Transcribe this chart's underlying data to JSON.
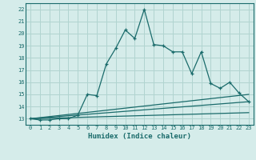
{
  "title": "",
  "xlabel": "Humidex (Indice chaleur)",
  "xlim": [
    -0.5,
    23.5
  ],
  "ylim": [
    12.5,
    22.5
  ],
  "yticks": [
    13,
    14,
    15,
    16,
    17,
    18,
    19,
    20,
    21,
    22
  ],
  "xticks": [
    0,
    1,
    2,
    3,
    4,
    5,
    6,
    7,
    8,
    9,
    10,
    11,
    12,
    13,
    14,
    15,
    16,
    17,
    18,
    19,
    20,
    21,
    22,
    23
  ],
  "bg_color": "#d5ecea",
  "grid_color": "#b0d4d0",
  "line_color": "#1a6b6b",
  "main_x": [
    0,
    1,
    2,
    3,
    4,
    5,
    6,
    7,
    8,
    9,
    10,
    11,
    12,
    13,
    14,
    15,
    16,
    17,
    18,
    19,
    20,
    21,
    22,
    23
  ],
  "main_y": [
    13.0,
    12.9,
    12.9,
    13.0,
    13.0,
    13.3,
    15.0,
    14.9,
    17.5,
    18.8,
    20.3,
    19.6,
    22.0,
    19.1,
    19.0,
    18.5,
    18.5,
    16.7,
    18.5,
    15.9,
    15.5,
    16.0,
    15.1,
    14.4
  ],
  "line2_x": [
    0,
    23
  ],
  "line2_y": [
    13.0,
    15.0
  ],
  "line3_x": [
    0,
    23
  ],
  "line3_y": [
    13.0,
    14.4
  ],
  "line4_x": [
    0,
    23
  ],
  "line4_y": [
    13.0,
    13.5
  ]
}
